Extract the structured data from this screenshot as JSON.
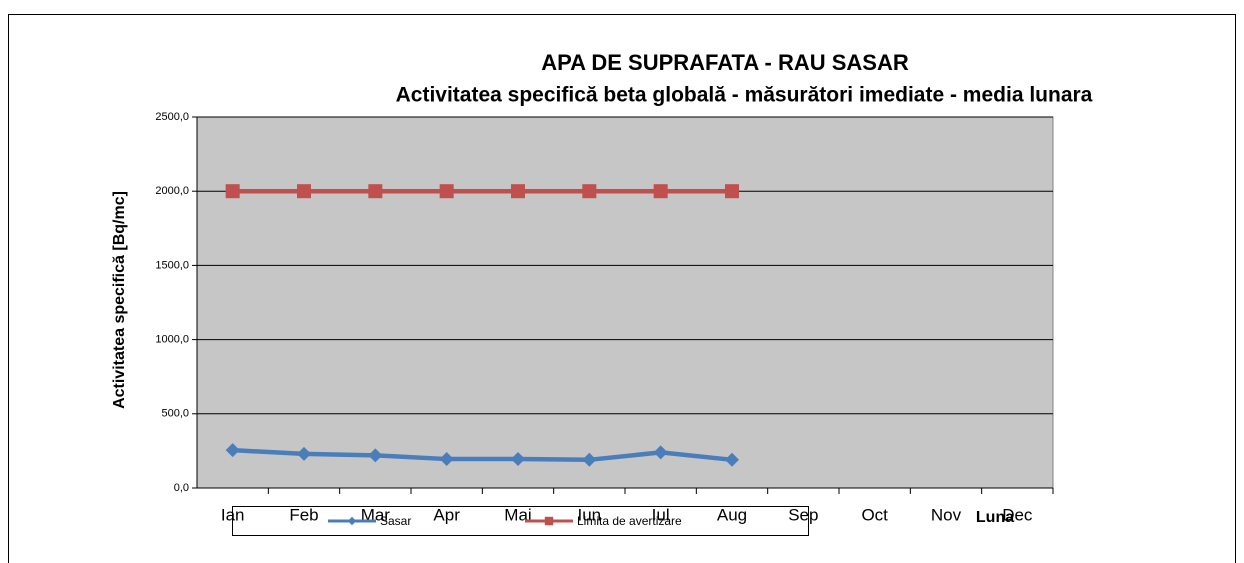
{
  "chart_data": {
    "type": "line",
    "title": "APA DE SUPRAFATA - RAU SASAR",
    "subtitle": "Activitatea specifică beta globală - măsurători imediate - media lunara",
    "y_label": "Activitatea specifică  [Bq/mc]",
    "x_label": "Luna",
    "categories": [
      "Ian",
      "Feb",
      "Mar",
      "Apr",
      "Mai",
      "Iun",
      "Iul",
      "Aug",
      "Sep",
      "Oct",
      "Nov",
      "Dec"
    ],
    "series": [
      {
        "name": "Sasar",
        "color": "#4a7ebb",
        "marker": "diamond",
        "values": [
          255,
          230,
          220,
          195,
          195,
          190,
          240,
          190,
          null,
          null,
          null,
          null
        ]
      },
      {
        "name": "Limita de avertizare",
        "color": "#c0504d",
        "marker": "square",
        "values": [
          2000,
          2000,
          2000,
          2000,
          2000,
          2000,
          2000,
          2000,
          null,
          null,
          null,
          null
        ]
      }
    ],
    "ylim": [
      0,
      2500
    ],
    "yticks": [
      {
        "value": 0,
        "label": "0,0"
      },
      {
        "value": 500,
        "label": "500,0"
      },
      {
        "value": 1000,
        "label": "1000,0"
      },
      {
        "value": 1500,
        "label": "1500,0"
      },
      {
        "value": 2000,
        "label": "2000,0"
      },
      {
        "value": 2500,
        "label": "2500,0"
      }
    ],
    "grid": true,
    "legend": "bottom"
  }
}
